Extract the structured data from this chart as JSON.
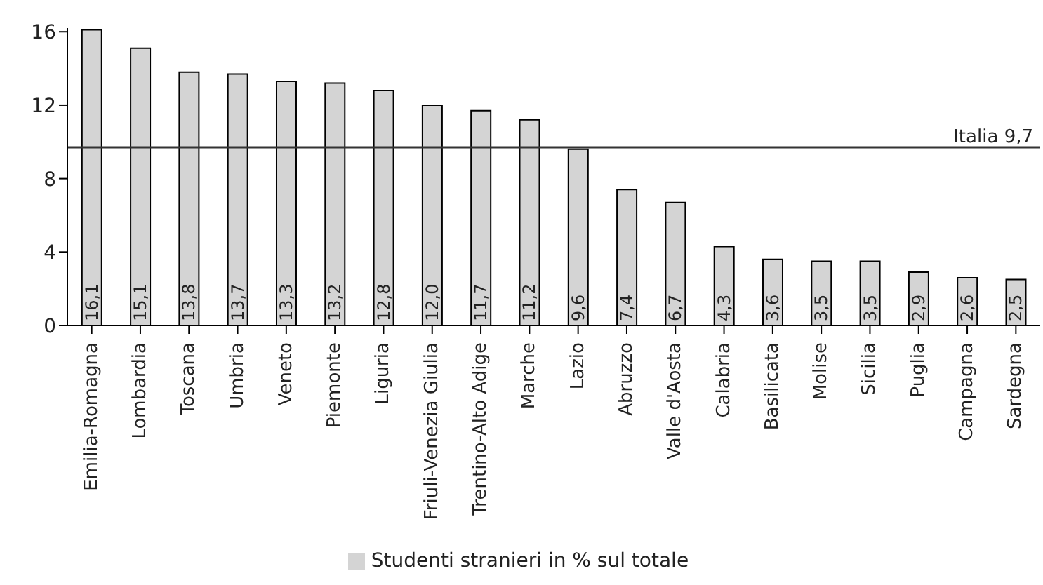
{
  "chart_data": {
    "type": "bar",
    "categories": [
      "Emilia-Romagna",
      "Lombardia",
      "Toscana",
      "Umbria",
      "Veneto",
      "Piemonte",
      "Liguria",
      "Friuli-Venezia Giulia",
      "Trentino-Alto Adige",
      "Marche",
      "Lazio",
      "Abruzzo",
      "Valle d'Aosta",
      "Calabria",
      "Basilicata",
      "Molise",
      "Sicilia",
      "Puglia",
      "Campagna",
      "Sardegna"
    ],
    "series": [
      {
        "name": "Studenti stranieri in % sul totale",
        "color": "#d4d4d4",
        "values": [
          16.1,
          15.1,
          13.8,
          13.7,
          13.3,
          13.2,
          12.8,
          12.0,
          11.7,
          11.2,
          9.6,
          7.4,
          6.7,
          4.3,
          3.6,
          3.5,
          3.5,
          2.9,
          2.6,
          2.5
        ],
        "value_labels": [
          "16,1",
          "15,1",
          "13,8",
          "13,7",
          "13,3",
          "13,2",
          "12,8",
          "12,0",
          "11,7",
          "11,2",
          "9,6",
          "7,4",
          "6,7",
          "4,3",
          "3,6",
          "3,5",
          "3,5",
          "2,9",
          "2,6",
          "2,5"
        ]
      }
    ],
    "ylim": [
      0,
      16.2
    ],
    "yticks": [
      0,
      4,
      8,
      12,
      16
    ],
    "grid": false,
    "legend": "bottom",
    "ref_lines": [
      {
        "axis": "y",
        "value": 9.7,
        "label": "Italia 9,7",
        "color": "#333333"
      }
    ]
  }
}
